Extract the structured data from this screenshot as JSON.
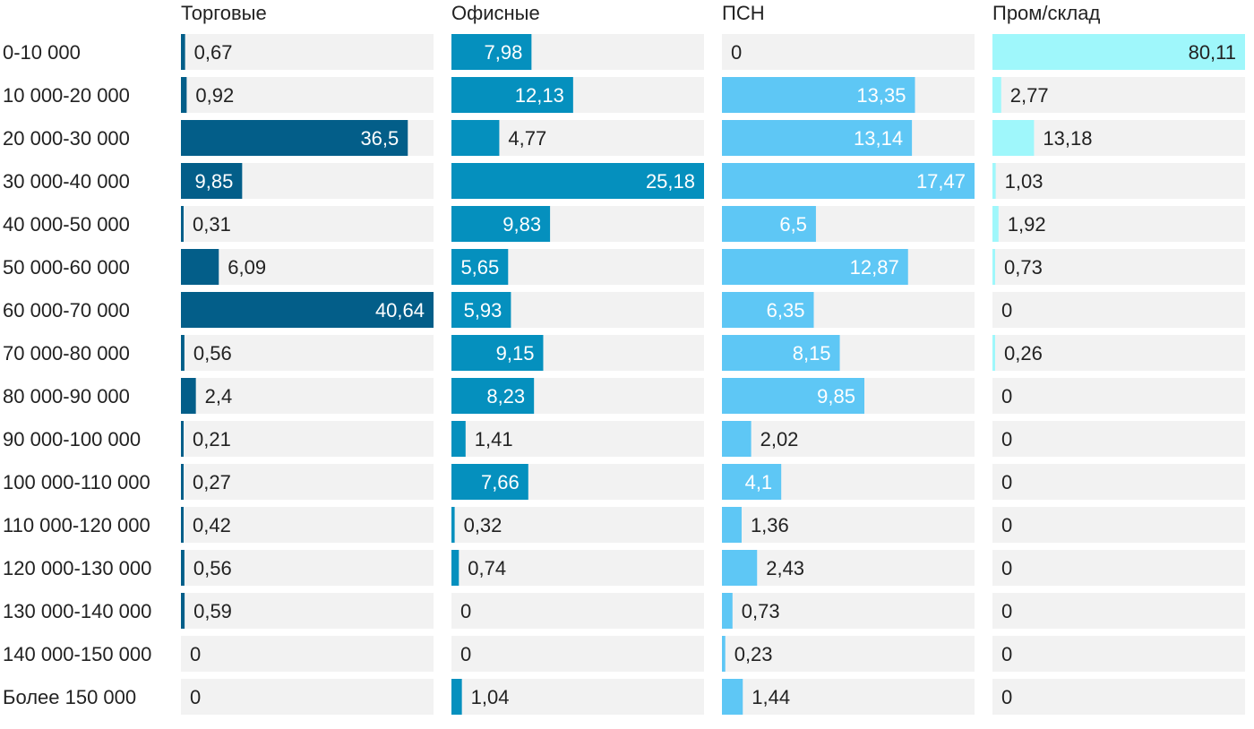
{
  "chart_data": {
    "type": "bar",
    "orientation": "horizontal",
    "categories": [
      "0-10 000",
      "10 000-20 000",
      "20 000-30 000",
      "30 000-40 000",
      "40 000-50 000",
      "50 000-60 000",
      "60 000-70 000",
      "70 000-80 000",
      "80 000-90 000",
      "90 000-100 000",
      "100 000-110 000",
      "110 000-120 000",
      "120 000-130 000",
      "130 000-140 000",
      "140 000-150 000",
      "Более 150 000"
    ],
    "series": [
      {
        "name": "Торговые",
        "color": "#035e89",
        "max": 40.64,
        "values": [
          0.67,
          0.92,
          36.5,
          9.85,
          0.31,
          6.09,
          40.64,
          0.56,
          2.4,
          0.21,
          0.27,
          0.42,
          0.56,
          0.59,
          0,
          0
        ],
        "labels": [
          "0,67",
          "0,92",
          "36,5",
          "9,85",
          "0,31",
          "6,09",
          "40,64",
          "0,56",
          "2,4",
          "0,21",
          "0,27",
          "0,42",
          "0,56",
          "0,59",
          "0",
          "0"
        ]
      },
      {
        "name": "Офисные",
        "color": "#0590be",
        "max": 25.18,
        "values": [
          7.98,
          12.13,
          4.77,
          25.18,
          9.83,
          5.65,
          5.93,
          9.15,
          8.23,
          1.41,
          7.66,
          0.32,
          0.74,
          0,
          0,
          1.04
        ],
        "labels": [
          "7,98",
          "12,13",
          "4,77",
          "25,18",
          "9,83",
          "5,65",
          "5,93",
          "9,15",
          "8,23",
          "1,41",
          "7,66",
          "0,32",
          "0,74",
          "0",
          "0",
          "1,04"
        ]
      },
      {
        "name": "ПСН",
        "color": "#5ec7f5",
        "max": 17.47,
        "values": [
          0,
          13.35,
          13.14,
          17.47,
          6.5,
          12.87,
          6.35,
          8.15,
          9.85,
          2.02,
          4.1,
          1.36,
          2.43,
          0.73,
          0.23,
          1.44
        ],
        "labels": [
          "0",
          "13,35",
          "13,14",
          "17,47",
          "6,5",
          "12,87",
          "6,35",
          "8,15",
          "9,85",
          "2,02",
          "4,1",
          "1,36",
          "2,43",
          "0,73",
          "0,23",
          "1,44"
        ]
      },
      {
        "name": "Пром/склад",
        "color": "#9ff7fb",
        "max": 80.11,
        "values": [
          80.11,
          2.77,
          13.18,
          1.03,
          1.92,
          0.73,
          0,
          0.26,
          0,
          0,
          0,
          0,
          0,
          0,
          0,
          0
        ],
        "labels": [
          "80,11",
          "2,77",
          "13,18",
          "1,03",
          "1,92",
          "0,73",
          "0",
          "0,26",
          "0",
          "0",
          "0",
          "0",
          "0",
          "0",
          "0",
          "0"
        ]
      }
    ],
    "background_track_color": "#f2f2f2",
    "label_color_inside": "#ffffff",
    "label_color_outside": "#222222"
  }
}
